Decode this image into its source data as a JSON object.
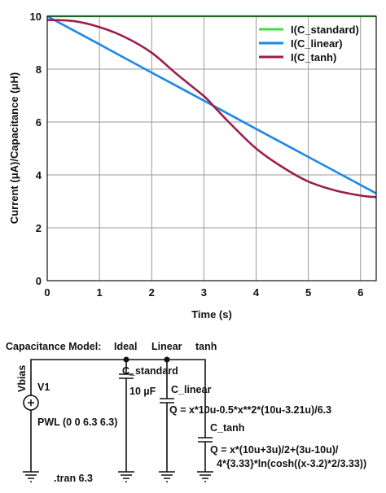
{
  "chart_data": {
    "type": "line",
    "xlabel": "Time (s)",
    "ylabel": "Current (μA)/Capacitance (μH)",
    "xlim": [
      0,
      6.3
    ],
    "ylim": [
      0,
      10
    ],
    "xticks": [
      "0",
      "1",
      "2",
      "3",
      "4",
      "5",
      "6"
    ],
    "yticks": [
      "0",
      "2",
      "4",
      "6",
      "8",
      "10"
    ],
    "grid": true,
    "legend_position": "top-right",
    "series": [
      {
        "name": "I(C_standard)",
        "color": "#44dd44",
        "x": [
          0,
          1,
          2,
          3,
          4,
          5,
          6,
          6.3
        ],
        "y": [
          10,
          10,
          10,
          10,
          10,
          10,
          10,
          10
        ]
      },
      {
        "name": "I(C_linear)",
        "color": "#1e88e5",
        "x": [
          0,
          1,
          2,
          3,
          4,
          5,
          6,
          6.3
        ],
        "y": [
          10,
          8.94,
          7.87,
          6.81,
          5.74,
          4.68,
          3.62,
          3.3
        ]
      },
      {
        "name": "I(C_tanh)",
        "color": "#9c1e4c",
        "x": [
          0,
          0.5,
          1,
          1.5,
          2,
          2.5,
          3,
          3.2,
          3.5,
          4,
          4.5,
          5,
          5.5,
          6,
          6.3
        ],
        "y": [
          9.86,
          9.82,
          9.59,
          9.2,
          8.62,
          7.78,
          6.98,
          6.57,
          5.95,
          5.0,
          4.3,
          3.75,
          3.42,
          3.22,
          3.16
        ]
      }
    ]
  },
  "schematic": {
    "title": "Capacitance Model:",
    "col_ideal": "Ideal",
    "col_linear": "Linear",
    "col_tanh": "tanh",
    "source_name": "Vbias",
    "source_ref": "V1",
    "source_value": "PWL (0 0 6.3 6.3)",
    "directive": ".tran 6.3",
    "cap_standard_name": "C_standard",
    "cap_standard_value": "10 µF",
    "cap_linear_name": "C_linear",
    "cap_linear_expr": "Q = x*10u-0.5*x**2*(10u-3.21u)/6.3",
    "cap_tanh_name": "C_tanh",
    "cap_tanh_expr_line1": "Q = x*(10u+3u)/2+(3u-10u)/",
    "cap_tanh_expr_line2": "4*{3.33}*ln(cosh((x-3.2)*2/3.33))"
  }
}
